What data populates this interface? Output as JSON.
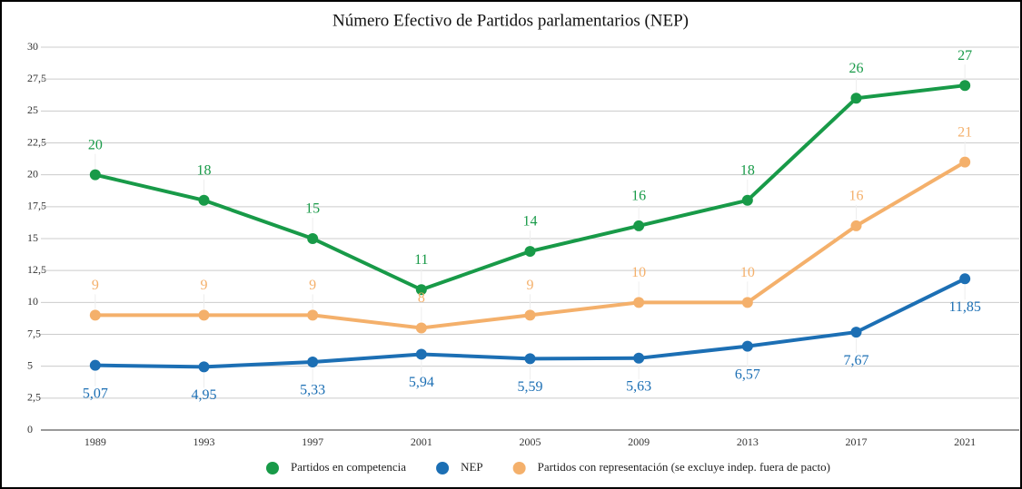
{
  "chart_data": {
    "type": "line",
    "title": "Número Efectivo de Partidos parlamentarios (NEP)",
    "categories": [
      "1989",
      "1993",
      "1997",
      "2001",
      "2005",
      "2009",
      "2013",
      "2017",
      "2021"
    ],
    "series": [
      {
        "name": "Partidos en competencia",
        "color": "#189a48",
        "values": [
          20,
          18,
          15,
          11,
          14,
          16,
          18,
          26,
          27
        ],
        "label_side": "above"
      },
      {
        "name": "NEP",
        "color": "#1c6fb4",
        "values": [
          5.07,
          4.95,
          5.33,
          5.94,
          5.59,
          5.63,
          6.57,
          7.67,
          11.85
        ],
        "value_labels": [
          "5,07",
          "4,95",
          "5,33",
          "5,94",
          "5,59",
          "5,63",
          "6,57",
          "7,67",
          "11,85"
        ],
        "label_side": "below"
      },
      {
        "name": "Partidos con representación (se excluye indep. fuera de pacto)",
        "color": "#f4b06b",
        "values": [
          9,
          9,
          9,
          8,
          9,
          10,
          10,
          16,
          21
        ],
        "label_side": "above"
      }
    ],
    "ylim": [
      0,
      30
    ],
    "yticks": [
      0,
      {
        "value": 2.5,
        "label": "2,5"
      },
      5,
      {
        "value": 7.5,
        "label": "7,5"
      },
      10,
      {
        "value": 12.5,
        "label": "12,5"
      },
      15,
      {
        "value": 17.5,
        "label": "17,5"
      },
      20,
      {
        "value": 22.5,
        "label": "22,5"
      },
      25,
      {
        "value": 27.5,
        "label": "27,5"
      },
      30
    ],
    "grid": true,
    "legend": "bottom"
  }
}
